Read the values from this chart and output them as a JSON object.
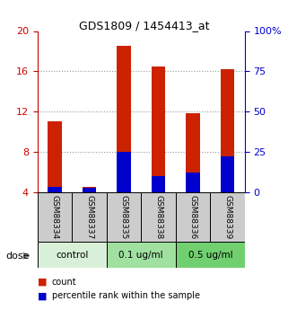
{
  "title": "GDS1809 / 1454413_at",
  "samples": [
    "GSM88334",
    "GSM88337",
    "GSM88335",
    "GSM88338",
    "GSM88336",
    "GSM88339"
  ],
  "groups": [
    {
      "label": "control",
      "indices": [
        0,
        1
      ],
      "color": "#d8f0d8"
    },
    {
      "label": "0.1 ug/ml",
      "indices": [
        2,
        3
      ],
      "color": "#a0e0a0"
    },
    {
      "label": "0.5 ug/ml",
      "indices": [
        4,
        5
      ],
      "color": "#70d070"
    }
  ],
  "count_values": [
    11.0,
    4.5,
    18.5,
    16.5,
    11.8,
    16.2
  ],
  "percentile_values": [
    3.5,
    2.5,
    25.0,
    10.0,
    12.0,
    22.0
  ],
  "bar_bottom": 4.0,
  "ylim_left": [
    4,
    20
  ],
  "ylim_right": [
    0,
    100
  ],
  "yticks_left": [
    4,
    8,
    12,
    16,
    20
  ],
  "yticks_right": [
    0,
    25,
    50,
    75,
    100
  ],
  "ytick_labels_right": [
    "0",
    "25",
    "50",
    "75",
    "100%"
  ],
  "left_axis_color": "#cc0000",
  "right_axis_color": "#0000cc",
  "bar_width": 0.4,
  "count_color": "#cc2200",
  "percentile_color": "#0000cc",
  "grid_color": "#999999",
  "sample_box_color": "#cccccc",
  "dose_label": "dose",
  "legend_count": "count",
  "legend_percentile": "percentile rank within the sample"
}
